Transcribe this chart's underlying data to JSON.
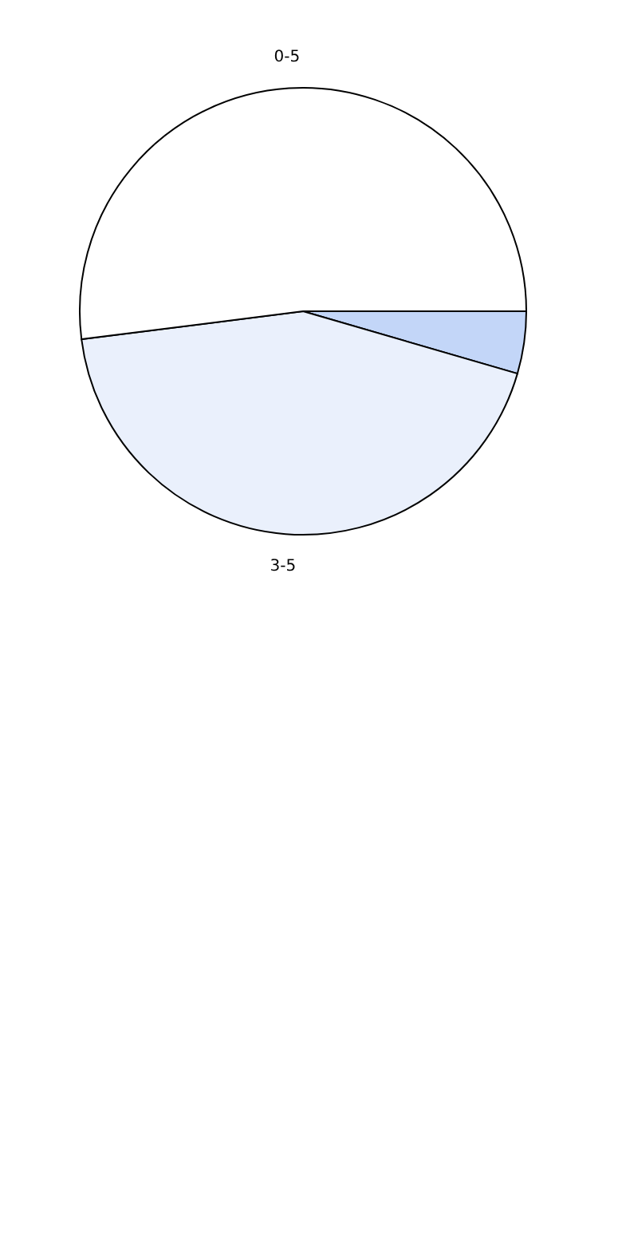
{
  "chart_data": {
    "type": "pie",
    "categories": [
      null,
      "3-5",
      "0-5"
    ],
    "values": [
      4.5,
      43.5,
      52
    ],
    "colors": [
      "#c3d6f8",
      "#eaf0fc",
      "#ffffff"
    ]
  }
}
